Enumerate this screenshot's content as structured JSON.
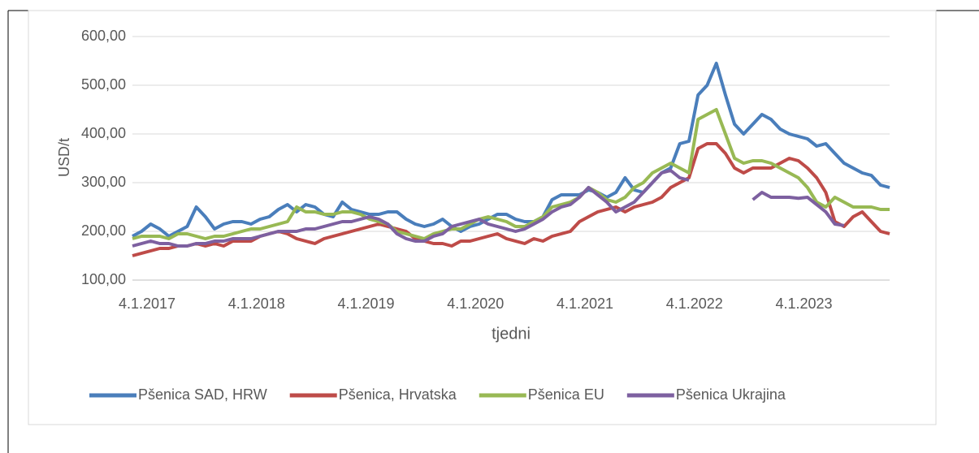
{
  "chart_data": {
    "type": "line",
    "y_label": "USD/t",
    "x_label": "tjedni",
    "categories": [
      "4.1.2017",
      null,
      null,
      null,
      null,
      null,
      null,
      null,
      null,
      null,
      null,
      null,
      "4.1.2018",
      null,
      null,
      null,
      null,
      null,
      null,
      null,
      null,
      null,
      null,
      null,
      "4.1.2019",
      null,
      null,
      null,
      null,
      null,
      null,
      null,
      null,
      null,
      null,
      null,
      "4.1.2020",
      null,
      null,
      null,
      null,
      null,
      null,
      null,
      null,
      null,
      null,
      null,
      "4.1.2021",
      null,
      null,
      null,
      null,
      null,
      null,
      null,
      null,
      null,
      null,
      null,
      "4.1.2022",
      null,
      null,
      null,
      null,
      null,
      null,
      null,
      null,
      null,
      null,
      null,
      "4.1.2023",
      null,
      null,
      null,
      null,
      null,
      null,
      null,
      null,
      null,
      null,
      null
    ],
    "series": [
      {
        "name": "Pšenica SAD, HRW",
        "color": "#4a7ebb",
        "values": [
          190,
          200,
          215,
          205,
          190,
          200,
          210,
          250,
          230,
          205,
          215,
          220,
          220,
          215,
          225,
          230,
          245,
          255,
          240,
          255,
          250,
          235,
          230,
          260,
          245,
          240,
          235,
          235,
          240,
          240,
          225,
          215,
          210,
          215,
          225,
          210,
          200,
          210,
          215,
          225,
          235,
          235,
          225,
          220,
          220,
          230,
          265,
          275,
          275,
          275,
          285,
          280,
          270,
          280,
          310,
          285,
          280,
          300,
          320,
          330,
          380,
          385,
          480,
          500,
          545,
          480,
          420,
          400,
          420,
          440,
          430,
          410,
          400,
          395,
          390,
          375,
          380,
          360,
          340,
          330,
          320,
          315,
          295,
          290
        ]
      },
      {
        "name": "Pšenica, Hrvatska",
        "color": "#be4b48",
        "values": [
          150,
          155,
          160,
          165,
          165,
          170,
          170,
          175,
          170,
          175,
          170,
          180,
          180,
          180,
          190,
          195,
          200,
          195,
          185,
          180,
          175,
          185,
          190,
          195,
          200,
          205,
          210,
          215,
          210,
          205,
          200,
          185,
          180,
          175,
          175,
          170,
          180,
          180,
          185,
          190,
          195,
          185,
          180,
          175,
          185,
          180,
          190,
          195,
          200,
          220,
          230,
          240,
          245,
          250,
          240,
          250,
          255,
          260,
          270,
          290,
          300,
          310,
          370,
          380,
          380,
          360,
          330,
          320,
          330,
          330,
          330,
          340,
          350,
          345,
          330,
          310,
          280,
          220,
          210,
          230,
          240,
          220,
          200,
          195
        ]
      },
      {
        "name": "Pšenica EU",
        "color": "#98b954",
        "values": [
          185,
          190,
          190,
          190,
          185,
          195,
          195,
          190,
          185,
          190,
          190,
          195,
          200,
          205,
          205,
          210,
          215,
          220,
          250,
          240,
          240,
          235,
          235,
          240,
          240,
          235,
          225,
          220,
          215,
          200,
          195,
          190,
          185,
          195,
          200,
          205,
          205,
          215,
          225,
          230,
          225,
          220,
          210,
          210,
          220,
          230,
          250,
          255,
          260,
          270,
          290,
          280,
          265,
          260,
          270,
          290,
          300,
          320,
          330,
          340,
          330,
          320,
          430,
          440,
          450,
          400,
          350,
          340,
          345,
          345,
          340,
          330,
          320,
          310,
          290,
          260,
          250,
          270,
          260,
          250,
          250,
          250,
          245,
          245
        ]
      },
      {
        "name": "Pšenica Ukrajina",
        "color": "#7d60a0",
        "values": [
          170,
          175,
          180,
          175,
          175,
          170,
          170,
          175,
          175,
          180,
          180,
          185,
          185,
          185,
          190,
          195,
          200,
          200,
          200,
          205,
          205,
          210,
          215,
          220,
          220,
          225,
          230,
          225,
          215,
          195,
          185,
          180,
          180,
          190,
          195,
          210,
          215,
          220,
          225,
          215,
          210,
          205,
          200,
          205,
          215,
          225,
          240,
          250,
          255,
          270,
          290,
          275,
          260,
          240,
          250,
          260,
          280,
          300,
          320,
          325,
          310,
          305,
          null,
          null,
          null,
          null,
          null,
          null,
          265,
          280,
          270,
          270,
          270,
          268,
          270,
          255,
          240,
          215,
          212,
          null,
          null,
          null,
          null,
          null
        ]
      }
    ],
    "ylim": [
      100,
      600
    ],
    "yticks": [
      {
        "value": 100,
        "label": "100,00"
      },
      {
        "value": 200,
        "label": "200,00"
      },
      {
        "value": 300,
        "label": "300,00"
      },
      {
        "value": 400,
        "label": "400,00"
      },
      {
        "value": 500,
        "label": "500,00"
      },
      {
        "value": 600,
        "label": "600,00"
      }
    ],
    "grid": true,
    "legend": "bottom"
  }
}
